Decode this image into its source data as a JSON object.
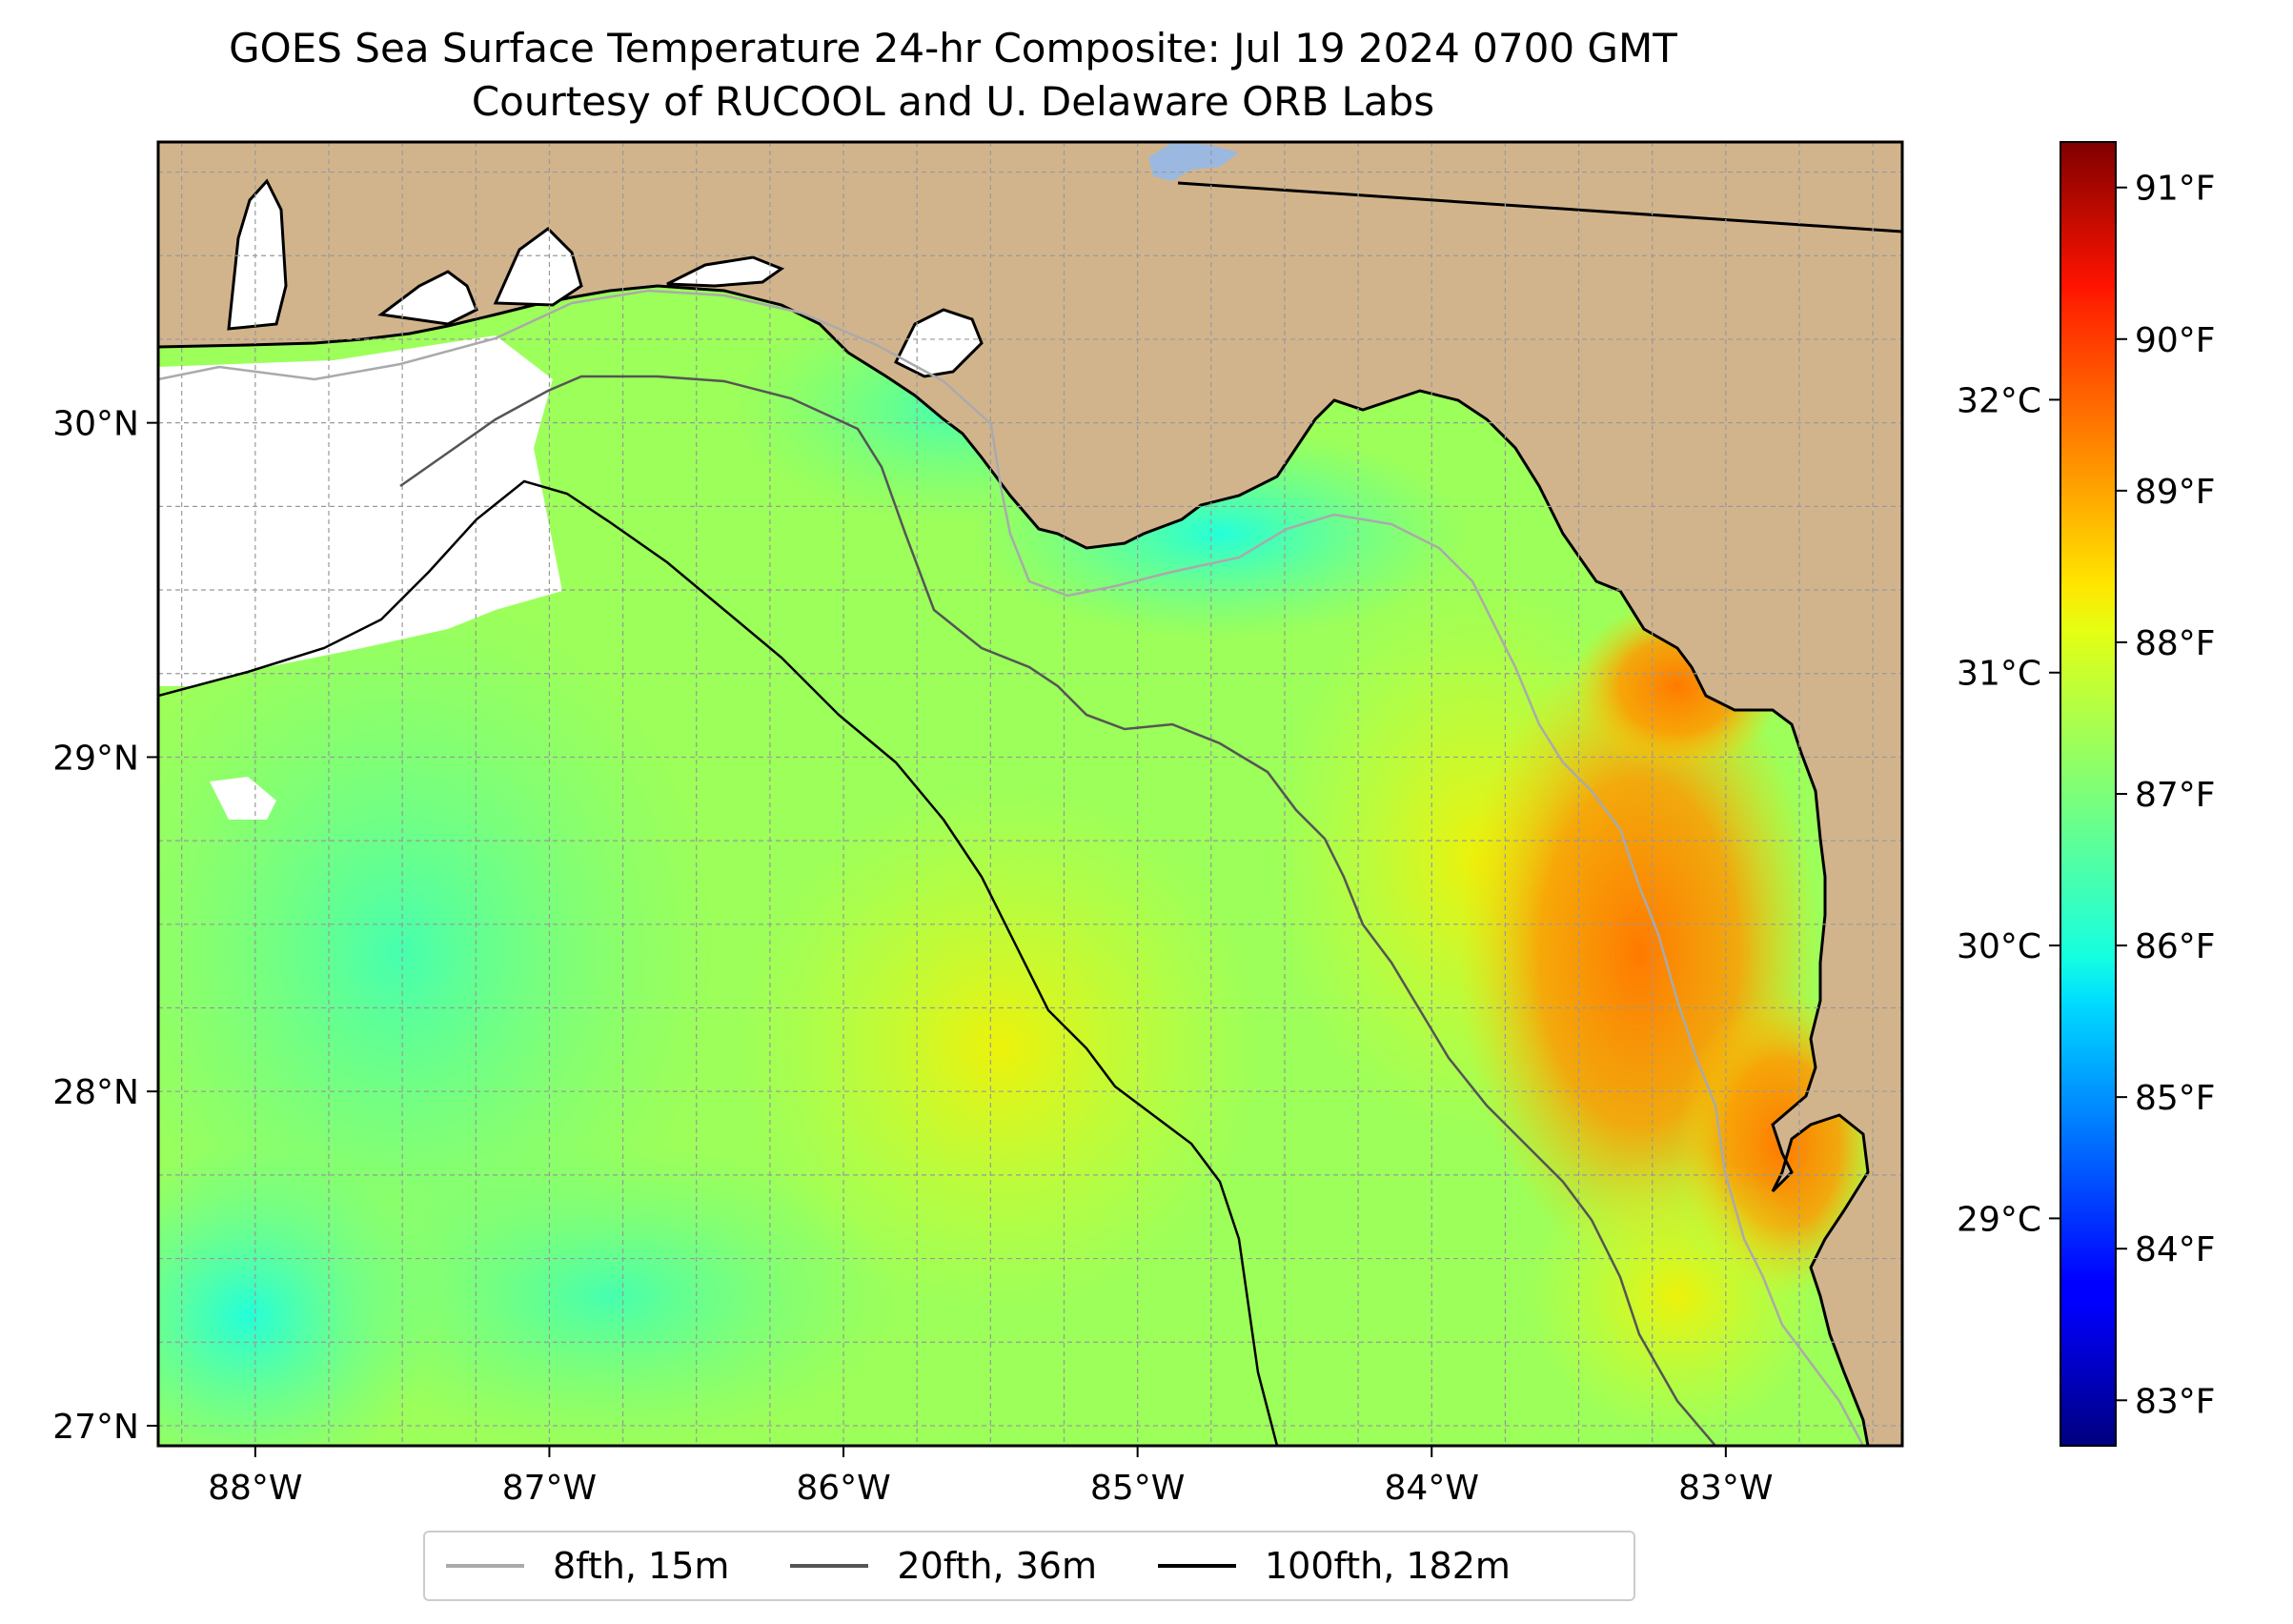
{
  "title": "GOES Sea Surface Temperature 24-hr Composite: Jul 19 2024 0700 GMT",
  "subtitle": "Courtesy of RUCOOL and U. Delaware ORB Labs",
  "map": {
    "lon_range": [
      -88.33,
      -82.4
    ],
    "lat_range": [
      26.94,
      30.84
    ],
    "lon_ticks": [
      {
        "v": -88,
        "label": "88°W"
      },
      {
        "v": -87,
        "label": "87°W"
      },
      {
        "v": -86,
        "label": "86°W"
      },
      {
        "v": -85,
        "label": "85°W"
      },
      {
        "v": -84,
        "label": "84°W"
      },
      {
        "v": -83,
        "label": "83°W"
      }
    ],
    "lat_ticks": [
      {
        "v": 27,
        "label": "27°N"
      },
      {
        "v": 28,
        "label": "28°N"
      },
      {
        "v": 29,
        "label": "29°N"
      },
      {
        "v": 30,
        "label": "30°N"
      }
    ],
    "grid": true,
    "land_color": "#d2b48c",
    "lake_color": "#9bb8e0",
    "no_data_color": "#ffffff"
  },
  "colorbar": {
    "colormap": "jet",
    "range_f": [
      82.7,
      91.3
    ],
    "f_ticks": [
      {
        "v": 83,
        "label": "83°F"
      },
      {
        "v": 84,
        "label": "84°F"
      },
      {
        "v": 85,
        "label": "85°F"
      },
      {
        "v": 86,
        "label": "86°F"
      },
      {
        "v": 87,
        "label": "87°F"
      },
      {
        "v": 88,
        "label": "88°F"
      },
      {
        "v": 89,
        "label": "89°F"
      },
      {
        "v": 90,
        "label": "90°F"
      },
      {
        "v": 91,
        "label": "91°F"
      }
    ],
    "c_ticks": [
      {
        "v": 29,
        "label": "29°C"
      },
      {
        "v": 30,
        "label": "30°C"
      },
      {
        "v": 31,
        "label": "31°C"
      },
      {
        "v": 32,
        "label": "32°C"
      }
    ]
  },
  "legend": {
    "items": [
      {
        "label": "8fth, 15m",
        "color": "#aaaaaa"
      },
      {
        "label": "20fth, 36m",
        "color": "#555555"
      },
      {
        "label": "100fth, 182m",
        "color": "#000000"
      }
    ],
    "placement": "bottom-center"
  }
}
